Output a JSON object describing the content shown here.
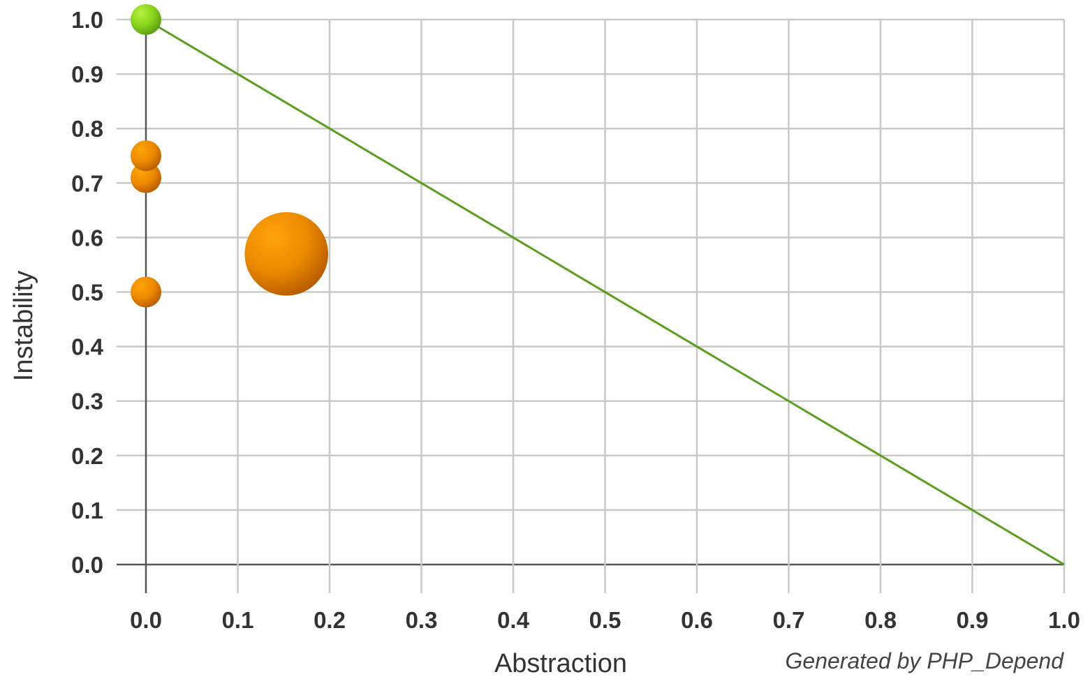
{
  "chart_data": {
    "type": "scatter",
    "title": "",
    "xlabel": "Abstraction",
    "ylabel": "Instability",
    "xlim": [
      0,
      1
    ],
    "ylim": [
      0,
      1
    ],
    "grid": true,
    "x_ticks": [
      "0.0",
      "0.1",
      "0.2",
      "0.3",
      "0.4",
      "0.5",
      "0.6",
      "0.7",
      "0.8",
      "0.9",
      "1.0"
    ],
    "y_ticks": [
      "0.0",
      "0.1",
      "0.2",
      "0.3",
      "0.4",
      "0.5",
      "0.6",
      "0.7",
      "0.8",
      "0.9",
      "1.0"
    ],
    "main_sequence": {
      "from": [
        0,
        1
      ],
      "to": [
        1,
        0
      ],
      "color": "#5a9e1e"
    },
    "points": [
      {
        "x": 0.0,
        "y": 1.0,
        "size": 1,
        "color": "green"
      },
      {
        "x": 0.0,
        "y": 0.71,
        "size": 1,
        "color": "orange"
      },
      {
        "x": 0.0,
        "y": 0.75,
        "size": 1,
        "color": "orange"
      },
      {
        "x": 0.0,
        "y": 0.5,
        "size": 1,
        "color": "orange"
      },
      {
        "x": 0.153,
        "y": 0.57,
        "size": 5.4,
        "color": "orange"
      }
    ],
    "credit": "Generated  by PHP_Depend"
  },
  "colors": {
    "grid": "#c8c8c4",
    "axis": "#555555",
    "green": "#7fcf20",
    "orange": "#ec8a00"
  }
}
